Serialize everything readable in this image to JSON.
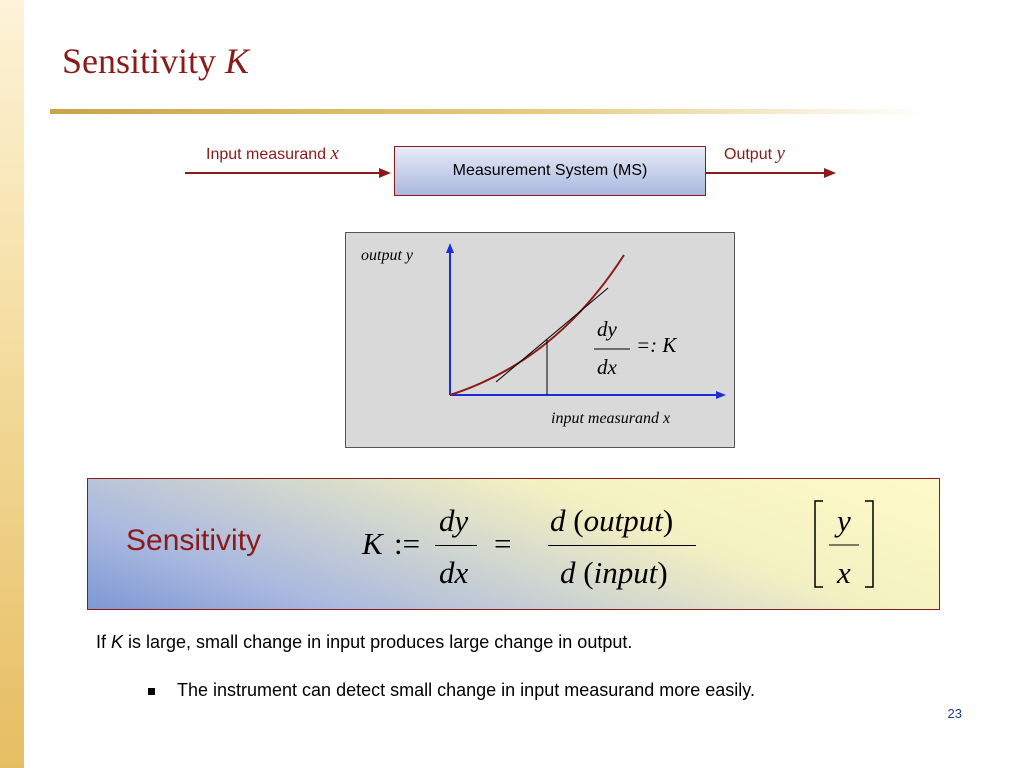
{
  "slide": {
    "title": "Sensitivity ",
    "title_symbol": "K",
    "page_number": "23"
  },
  "block_diagram": {
    "input_label": "Input measurand ",
    "input_symbol": "x",
    "system_label": "Measurement System (MS)",
    "output_label": "Output ",
    "output_symbol": "y"
  },
  "plot": {
    "y_axis_label": "output  y",
    "x_axis_label": "input  measurand   x",
    "deriv_num": "dy",
    "deriv_den": "dx",
    "deriv_def": "=: K"
  },
  "formula": {
    "label": "Sensitivity",
    "lhs": "K",
    "assign": ":=",
    "frac1_num": "dy",
    "frac1_den": "dx",
    "equals": "=",
    "frac2_num_var": "d",
    "frac2_num_arg": "output",
    "frac2_den_var": "d",
    "frac2_den_arg": "input",
    "unit_num": "y",
    "unit_den": "x"
  },
  "text": {
    "line1_pre": "If ",
    "line1_sym": "K",
    "line1_post": " is large, small change in input produces large change in output.",
    "bullet1": "The instrument can detect small change in input measurand more easily."
  },
  "colors": {
    "title": "#8b1a1a",
    "axis": "#1a2fd6",
    "curve": "#8b1a1a",
    "page_number": "#1f3f8f"
  }
}
